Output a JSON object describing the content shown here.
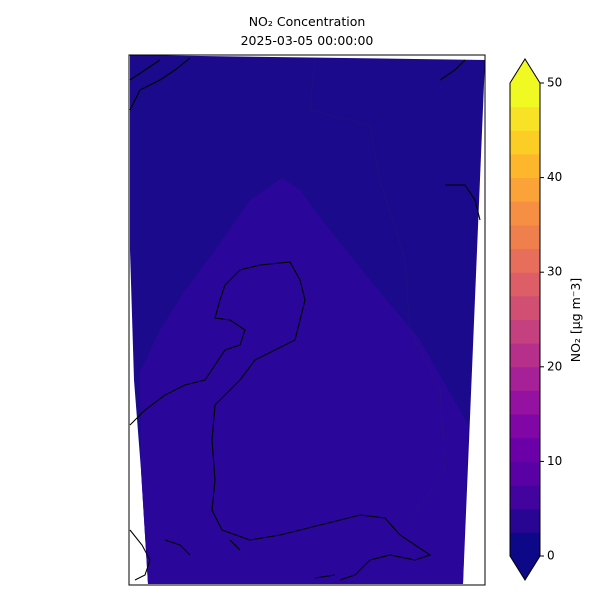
{
  "title": "NO₂ Concentration",
  "subtitle": "2025-03-05 00:00:00",
  "colorbar": {
    "label": "NO₂ [µg m⁻3]",
    "lim": [
      0,
      50
    ],
    "ticks": [
      0,
      10,
      20,
      30,
      40,
      50
    ],
    "levels": [
      0,
      2.5,
      5,
      7.5,
      10,
      12.5,
      15,
      17.5,
      20,
      22.5,
      25,
      27.5,
      30,
      32.5,
      35,
      37.5,
      40,
      42.5,
      45,
      47.5,
      50
    ],
    "colors": [
      "#0d0887",
      "#280592",
      "#43039e",
      "#5a01a5",
      "#6c00a8",
      "#8106a6",
      "#9511a1",
      "#a62098",
      "#b6308b",
      "#c5407e",
      "#d04f72",
      "#dd5e66",
      "#e76e5b",
      "#f07f4e",
      "#f68f44",
      "#fba238",
      "#feb72d",
      "#fccd25",
      "#f7e225",
      "#f0f921"
    ],
    "under": "#0d0887",
    "over": "#f0f921",
    "extend": "both"
  }
}
